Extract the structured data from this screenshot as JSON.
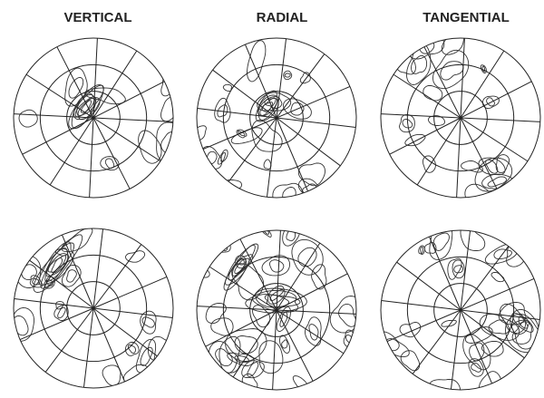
{
  "titles": [
    "VERTICAL",
    "RADIAL",
    "TANGENTIAL"
  ]
}
